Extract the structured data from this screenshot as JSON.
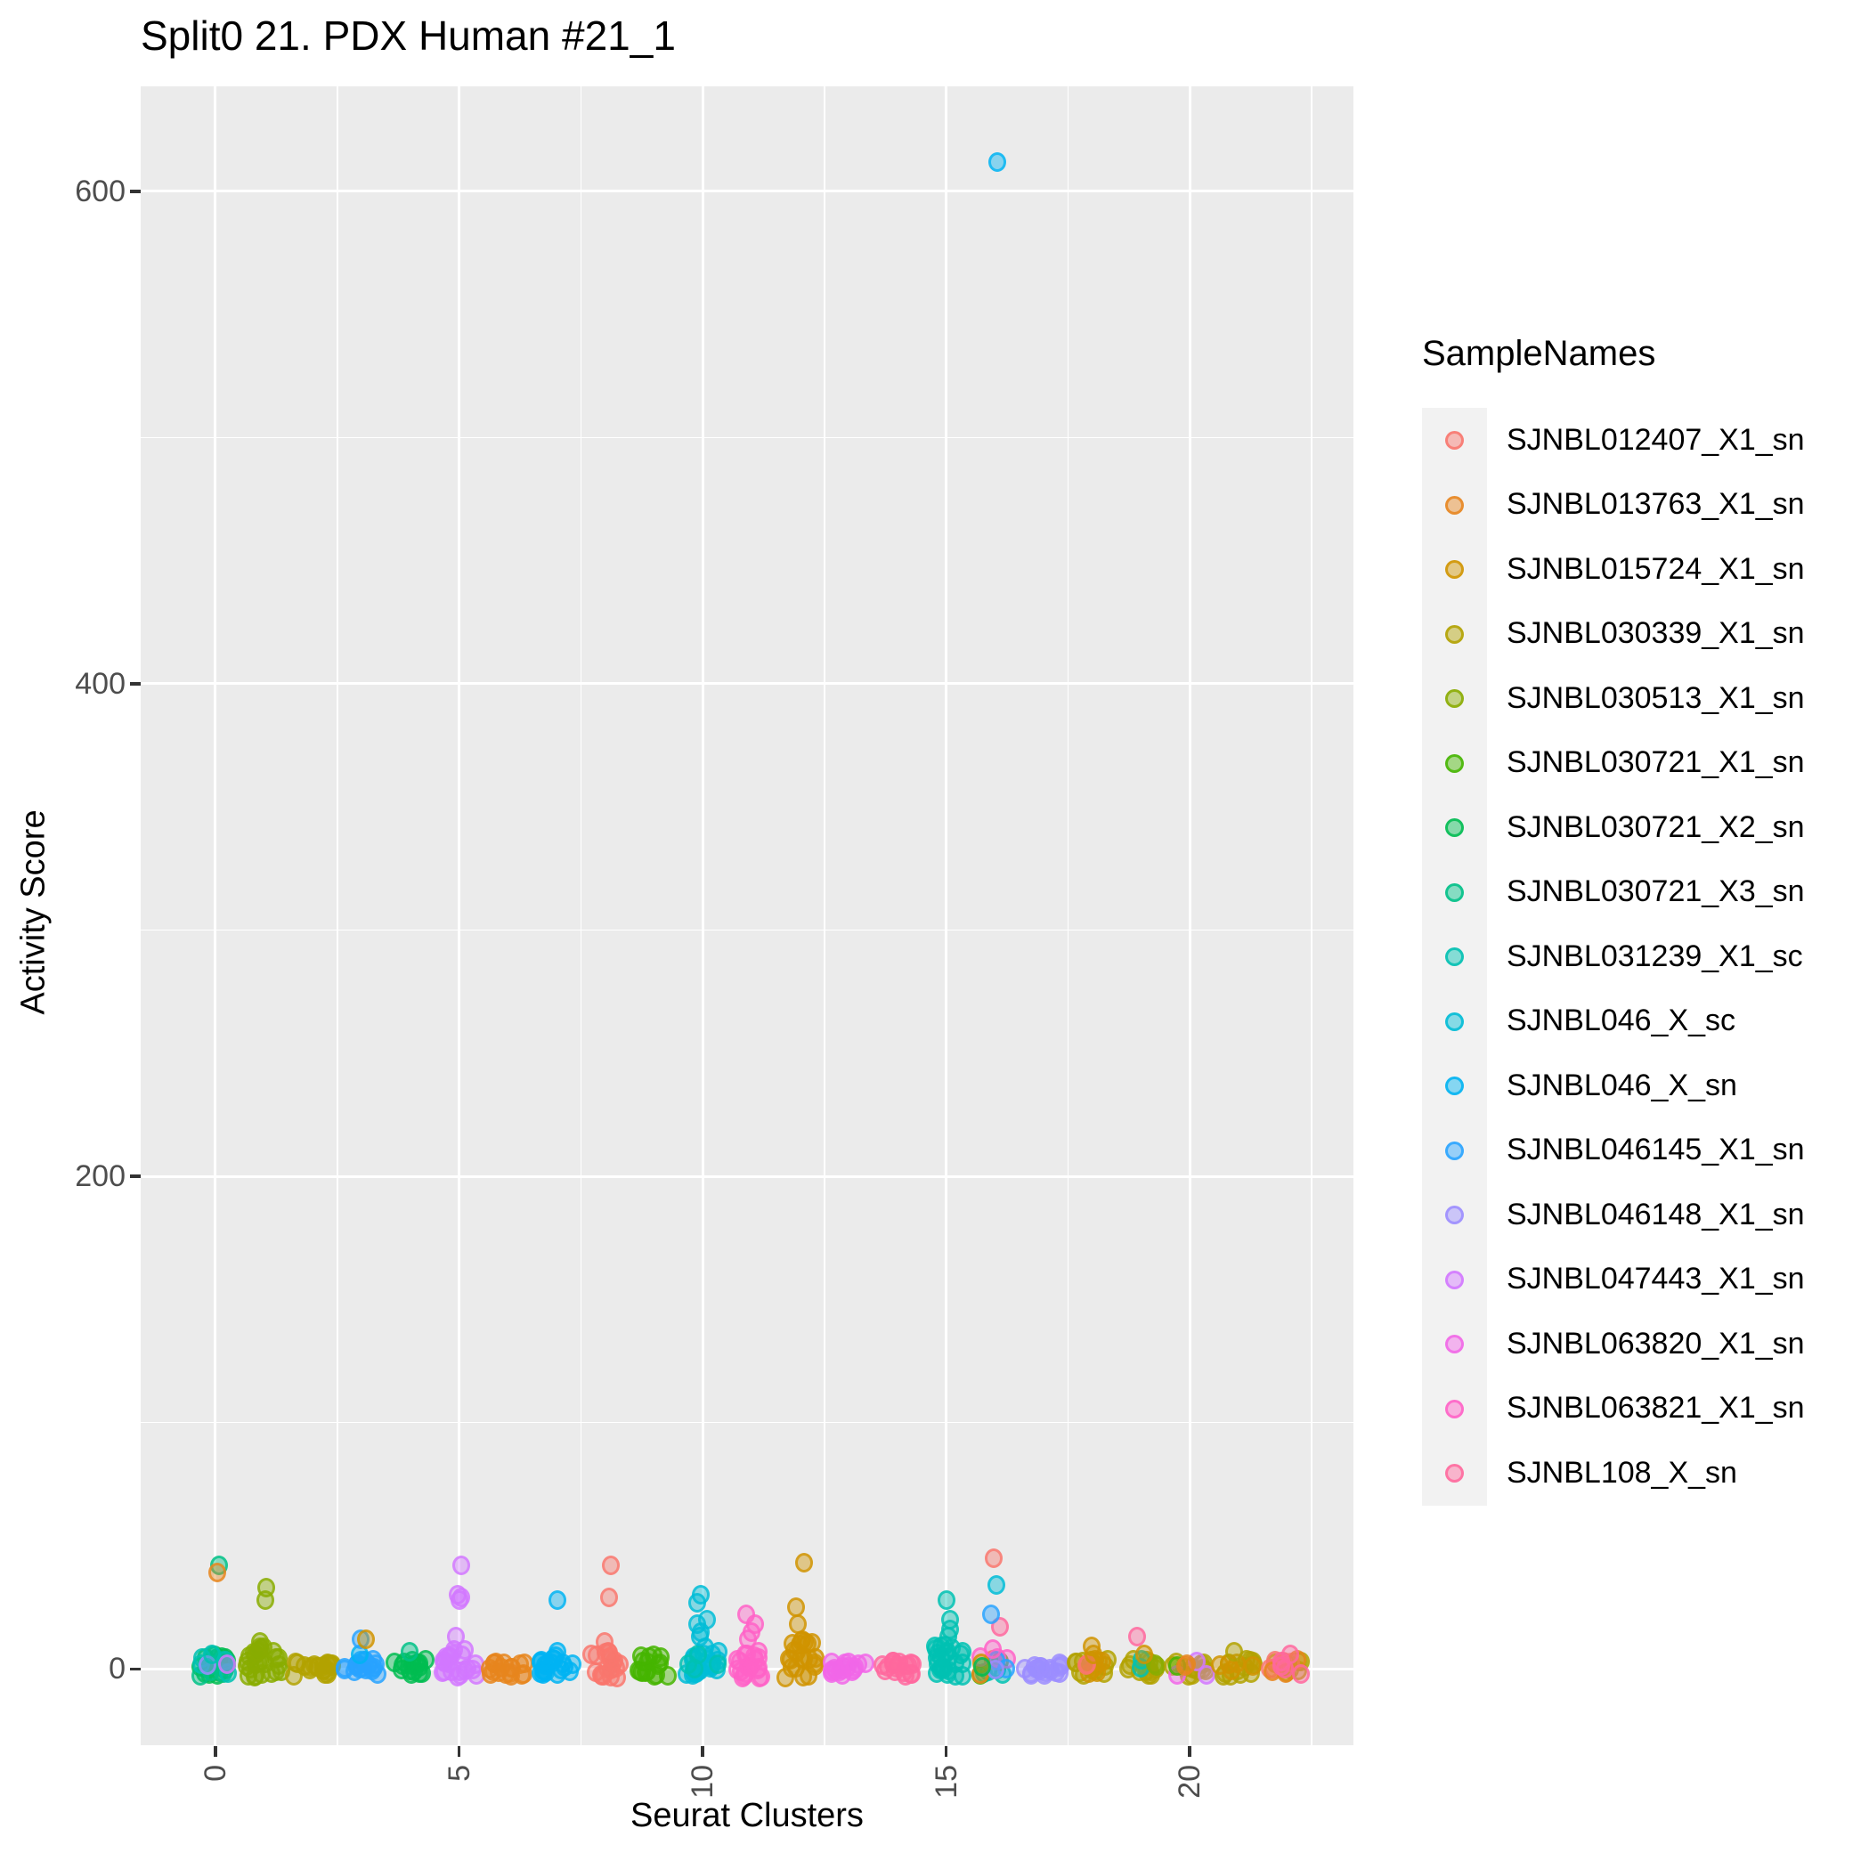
{
  "chart_data": {
    "type": "scatter",
    "subtype": "jittered-strip-plot",
    "title": "Split0 21. PDX Human #21_1",
    "xlabel": "Seurat Clusters",
    "ylabel": "Activity Score",
    "x_ticks": [
      0,
      5,
      10,
      15,
      20
    ],
    "y_ticks": [
      0,
      200,
      400,
      600
    ],
    "x_minor": [
      2.5,
      7.5,
      12.5,
      17.5,
      22.5
    ],
    "y_minor": [
      100,
      300,
      500
    ],
    "xlim": [
      -1.535,
      23.36
    ],
    "ylim": [
      -31,
      642.6
    ],
    "grid": true,
    "legend_position": "right",
    "legend": {
      "title": "SampleNames",
      "items": [
        {
          "name": "SJNBL012407_X1_sn",
          "color": "#F8766D"
        },
        {
          "name": "SJNBL013763_X1_sn",
          "color": "#E7851E"
        },
        {
          "name": "SJNBL015724_X1_sn",
          "color": "#D09400"
        },
        {
          "name": "SJNBL030339_X1_sn",
          "color": "#B2A100"
        },
        {
          "name": "SJNBL030513_X1_sn",
          "color": "#89AC00"
        },
        {
          "name": "SJNBL030721_X1_sn",
          "color": "#45B500"
        },
        {
          "name": "SJNBL030721_X2_sn",
          "color": "#00BC51"
        },
        {
          "name": "SJNBL030721_X3_sn",
          "color": "#00C087"
        },
        {
          "name": "SJNBL031239_X1_sc",
          "color": "#00C0B2"
        },
        {
          "name": "SJNBL046_X_sc",
          "color": "#00BCD6"
        },
        {
          "name": "SJNBL046_X_sn",
          "color": "#00B3F2"
        },
        {
          "name": "SJNBL046145_X1_sn",
          "color": "#29A3FF"
        },
        {
          "name": "SJNBL046148_X1_sn",
          "color": "#9C8DFF"
        },
        {
          "name": "SJNBL047443_X1_sn",
          "color": "#D277FF"
        },
        {
          "name": "SJNBL063820_X1_sn",
          "color": "#F166E8"
        },
        {
          "name": "SJNBL063821_X1_sn",
          "color": "#FF61C7"
        },
        {
          "name": "SJNBL108_X_sn",
          "color": "#FF689E"
        }
      ]
    },
    "outlier": {
      "cluster": 16.05,
      "sample": "SJNBL046_X_sn",
      "value": 612
    },
    "clusters": [
      {
        "x": 0,
        "ymin": -3,
        "ymax": 6,
        "w": 0.33,
        "base": [
          [
            "SJNBL030721_X2_sn",
            16
          ],
          [
            "SJNBL030721_X3_sn",
            6
          ],
          [
            "SJNBL031239_X1_sc",
            4
          ],
          [
            "SJNBL047443_X1_sn",
            1
          ],
          [
            "SJNBL046148_X1_sn",
            1
          ]
        ],
        "features": [
          [
            "SJNBL031239_X1_sc",
            6
          ],
          [
            "SJNBL030721_X3_sn",
            42
          ],
          [
            "SJNBL013763_X1_sn",
            39
          ]
        ]
      },
      {
        "x": 1,
        "ymin": -4,
        "ymax": 9,
        "w": 0.38,
        "base": [
          [
            "SJNBL030513_X1_sn",
            26
          ]
        ],
        "features": [
          [
            "SJNBL030513_X1_sn",
            11
          ],
          [
            "SJNBL030513_X1_sn",
            28
          ],
          [
            "SJNBL030513_X1_sn",
            33
          ]
        ]
      },
      {
        "x": 2,
        "ymin": -3,
        "ymax": 3,
        "w": 0.4,
        "base": [
          [
            "SJNBL030339_X1_sn",
            20
          ]
        ],
        "features": []
      },
      {
        "x": 3,
        "ymin": -3,
        "ymax": 4,
        "w": 0.38,
        "base": [
          [
            "SJNBL046145_X1_sn",
            20
          ]
        ],
        "features": [
          [
            "SJNBL046_X_sn",
            6
          ],
          [
            "SJNBL046145_X1_sn",
            12
          ],
          [
            "SJNBL015724_X1_sn",
            12
          ]
        ]
      },
      {
        "x": 4,
        "ymin": -3,
        "ymax": 4,
        "w": 0.33,
        "base": [
          [
            "SJNBL030721_X2_sn",
            16
          ]
        ],
        "features": [
          [
            "SJNBL030721_X3_sn",
            7
          ]
        ]
      },
      {
        "x": 5,
        "ymin": -4,
        "ymax": 8,
        "w": 0.36,
        "base": [
          [
            "SJNBL047443_X1_sn",
            22
          ]
        ],
        "features": [
          [
            "SJNBL047443_X1_sn",
            13
          ],
          [
            "SJNBL047443_X1_sn",
            28
          ],
          [
            "SJNBL047443_X1_sn",
            30
          ],
          [
            "SJNBL047443_X1_sn",
            29
          ],
          [
            "SJNBL047443_X1_sn",
            42
          ]
        ]
      },
      {
        "x": 6,
        "ymin": -3,
        "ymax": 3,
        "w": 0.38,
        "base": [
          [
            "SJNBL013763_X1_sn",
            18
          ]
        ],
        "features": []
      },
      {
        "x": 7,
        "ymin": -3,
        "ymax": 4,
        "w": 0.36,
        "base": [
          [
            "SJNBL046_X_sn",
            20
          ]
        ],
        "features": [
          [
            "SJNBL046_X_sn",
            5
          ],
          [
            "SJNBL046_X_sn",
            7
          ],
          [
            "SJNBL046_X_sn",
            28
          ]
        ]
      },
      {
        "x": 8,
        "ymin": -4,
        "ymax": 8,
        "w": 0.33,
        "base": [
          [
            "SJNBL012407_X1_sn",
            20
          ]
        ],
        "features": [
          [
            "SJNBL012407_X1_sn",
            11
          ],
          [
            "SJNBL012407_X1_sn",
            29
          ],
          [
            "SJNBL012407_X1_sn",
            42
          ]
        ]
      },
      {
        "x": 9,
        "ymin": -3,
        "ymax": 6,
        "w": 0.33,
        "base": [
          [
            "SJNBL030721_X1_sn",
            16
          ]
        ],
        "features": []
      },
      {
        "x": 10,
        "ymin": -3,
        "ymax": 9,
        "w": 0.33,
        "base": [
          [
            "SJNBL046_X_sc",
            24
          ],
          [
            "SJNBL031239_X1_sc",
            4
          ]
        ],
        "features": [
          [
            "SJNBL046_X_sc",
            13
          ],
          [
            "SJNBL046_X_sc",
            15
          ],
          [
            "SJNBL046_X_sc",
            18
          ],
          [
            "SJNBL046_X_sc",
            20
          ],
          [
            "SJNBL046_X_sc",
            27
          ],
          [
            "SJNBL046_X_sc",
            30
          ]
        ]
      },
      {
        "x": 11,
        "ymin": -4,
        "ymax": 8,
        "w": 0.33,
        "base": [
          [
            "SJNBL063821_X1_sn",
            20
          ]
        ],
        "features": [
          [
            "SJNBL063821_X1_sn",
            12
          ],
          [
            "SJNBL063821_X1_sn",
            15
          ],
          [
            "SJNBL063821_X1_sn",
            18
          ],
          [
            "SJNBL063821_X1_sn",
            22
          ]
        ]
      },
      {
        "x": 12,
        "ymin": -4,
        "ymax": 12,
        "w": 0.33,
        "base": [
          [
            "SJNBL015724_X1_sn",
            22
          ]
        ],
        "features": [
          [
            "SJNBL015724_X1_sn",
            18
          ],
          [
            "SJNBL015724_X1_sn",
            25
          ],
          [
            "SJNBL015724_X1_sn",
            43
          ]
        ]
      },
      {
        "x": 13,
        "ymin": -3,
        "ymax": 3,
        "w": 0.4,
        "base": [
          [
            "SJNBL063820_X1_sn",
            18
          ]
        ],
        "features": []
      },
      {
        "x": 14,
        "ymin": -3,
        "ymax": 3,
        "w": 0.38,
        "base": [
          [
            "SJNBL108_X_sn",
            18
          ]
        ],
        "features": []
      },
      {
        "x": 15,
        "ymin": -3,
        "ymax": 10,
        "w": 0.36,
        "base": [
          [
            "SJNBL031239_X1_sc",
            26
          ]
        ],
        "features": [
          [
            "SJNBL031239_X1_sc",
            13
          ],
          [
            "SJNBL031239_X1_sc",
            16
          ],
          [
            "SJNBL031239_X1_sc",
            20
          ],
          [
            "SJNBL031239_X1_sc",
            28
          ]
        ]
      },
      {
        "x": 16,
        "ymin": -3,
        "ymax": 5,
        "w": 0.33,
        "base": [
          [
            "SJNBL031239_X1_sc",
            5
          ],
          [
            "SJNBL030721_X1_sn",
            2
          ],
          [
            "SJNBL013763_X1_sn",
            2
          ],
          [
            "SJNBL063821_X1_sn",
            3
          ],
          [
            "SJNBL046145_X1_sn",
            2
          ],
          [
            "SJNBL046148_X1_sn",
            1
          ],
          [
            "SJNBL015724_X1_sn",
            1
          ],
          [
            "SJNBL030721_X2_sn",
            1
          ]
        ],
        "features": [
          [
            "SJNBL063821_X1_sn",
            8
          ],
          [
            "SJNBL108_X_sn",
            17
          ],
          [
            "SJNBL046145_X1_sn",
            22
          ],
          [
            "SJNBL046_X_sc",
            34
          ],
          [
            "SJNBL012407_X1_sn",
            45
          ]
        ]
      },
      {
        "x": 17,
        "ymin": -3,
        "ymax": 3,
        "w": 0.4,
        "base": [
          [
            "SJNBL046148_X1_sn",
            18
          ]
        ],
        "features": []
      },
      {
        "x": 18,
        "ymin": -3,
        "ymax": 4,
        "w": 0.36,
        "base": [
          [
            "SJNBL030339_X1_sn",
            12
          ],
          [
            "SJNBL015724_X1_sn",
            6
          ],
          [
            "SJNBL012407_X1_sn",
            2
          ]
        ],
        "features": [
          [
            "SJNBL015724_X1_sn",
            6
          ],
          [
            "SJNBL015724_X1_sn",
            9
          ]
        ]
      },
      {
        "x": 19,
        "ymin": -3,
        "ymax": 4,
        "w": 0.36,
        "base": [
          [
            "SJNBL030339_X1_sn",
            12
          ],
          [
            "SJNBL031239_X1_sc",
            2
          ],
          [
            "SJNBL030513_X1_sn",
            2
          ]
        ],
        "features": [
          [
            "SJNBL015724_X1_sn",
            6
          ],
          [
            "SJNBL108_X_sn",
            13
          ]
        ]
      },
      {
        "x": 20,
        "ymin": -3,
        "ymax": 3,
        "w": 0.36,
        "base": [
          [
            "SJNBL030339_X1_sn",
            12
          ],
          [
            "SJNBL047443_X1_sn",
            2
          ],
          [
            "SJNBL063820_X1_sn",
            1
          ],
          [
            "SJNBL030721_X1_sn",
            1
          ],
          [
            "SJNBL013763_X1_sn",
            2
          ]
        ],
        "features": []
      },
      {
        "x": 21,
        "ymin": -3,
        "ymax": 4,
        "w": 0.38,
        "base": [
          [
            "SJNBL030339_X1_sn",
            12
          ],
          [
            "SJNBL015724_X1_sn",
            5
          ]
        ],
        "features": [
          [
            "SJNBL030339_X1_sn",
            7
          ]
        ]
      },
      {
        "x": 22,
        "ymin": -3,
        "ymax": 4,
        "w": 0.36,
        "base": [
          [
            "SJNBL030339_X1_sn",
            8
          ],
          [
            "SJNBL012407_X1_sn",
            5
          ],
          [
            "SJNBL013763_X1_sn",
            3
          ],
          [
            "SJNBL108_X_sn",
            4
          ]
        ],
        "features": [
          [
            "SJNBL108_X_sn",
            6
          ]
        ]
      }
    ],
    "style": {
      "panel_bg": "#EBEBEB",
      "grid_color": "#FFFFFF",
      "tick_text_color": "#4D4D4D",
      "tick_mark_color": "#333333",
      "legend_key_bg": "#F2F2F2",
      "point_fill_alpha": 0.42,
      "point_ring_alpha": 0.78
    }
  }
}
